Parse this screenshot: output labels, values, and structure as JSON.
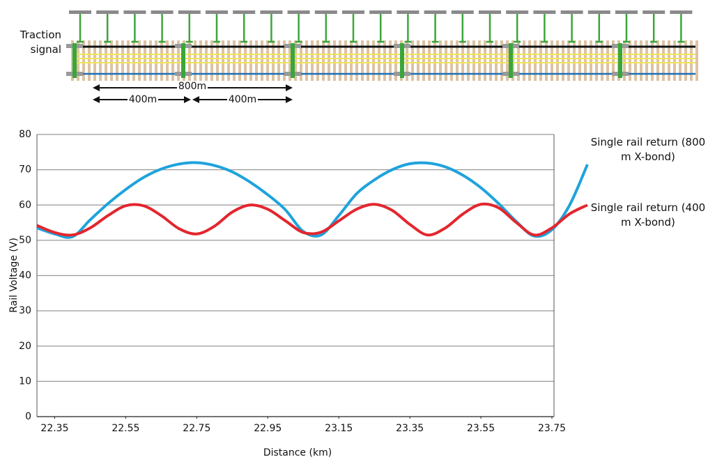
{
  "diagram": {
    "signal_label": "Traction signal",
    "spans": [
      "800m",
      "400m",
      "400m"
    ]
  },
  "chart_data": {
    "type": "line",
    "x": [
      22.3,
      22.35,
      22.4,
      22.45,
      22.5,
      22.55,
      22.6,
      22.65,
      22.7,
      22.75,
      22.8,
      22.85,
      22.9,
      22.95,
      23.0,
      23.05,
      23.1,
      23.15,
      23.2,
      23.25,
      23.3,
      23.35,
      23.4,
      23.45,
      23.5,
      23.55,
      23.6,
      23.65,
      23.7,
      23.75,
      23.8,
      23.85
    ],
    "series": [
      {
        "name": "Single rail return (800 m X-bond)",
        "color": "#1fa3dc",
        "values": [
          53.5,
          51.8,
          51,
          55.8,
          60.4,
          64.4,
          67.8,
          70.2,
          71.6,
          72,
          71.2,
          69.4,
          66.5,
          62.9,
          58.6,
          52.5,
          51.5,
          57,
          63.2,
          67.1,
          70,
          71.7,
          71.9,
          70.8,
          68.4,
          64.9,
          60.4,
          55.3,
          51.2,
          53,
          60,
          71.5
        ]
      },
      {
        "name": "Single rail return (400 m X-bond)",
        "color": "#e3262e",
        "values": [
          54.2,
          52.2,
          51.5,
          53.5,
          57,
          59.8,
          59.8,
          57,
          53.3,
          51.8,
          54,
          58,
          60,
          58.8,
          55.5,
          52.2,
          52.3,
          55.5,
          58.8,
          60.2,
          58.5,
          54.5,
          51.5,
          53.5,
          57.5,
          60.2,
          59.2,
          55,
          51.5,
          53.5,
          57.5,
          60
        ]
      }
    ],
    "xlabel": "Distance (km)",
    "ylabel": "Rail Voltage (V)",
    "xlim": [
      22.3,
      23.75
    ],
    "xticks": [
      22.35,
      22.55,
      22.75,
      22.95,
      23.15,
      23.35,
      23.55,
      23.75
    ],
    "ylim": [
      0,
      80
    ],
    "yticks": [
      0,
      10,
      20,
      30,
      40,
      50,
      60,
      70,
      80
    ],
    "grid": true
  }
}
